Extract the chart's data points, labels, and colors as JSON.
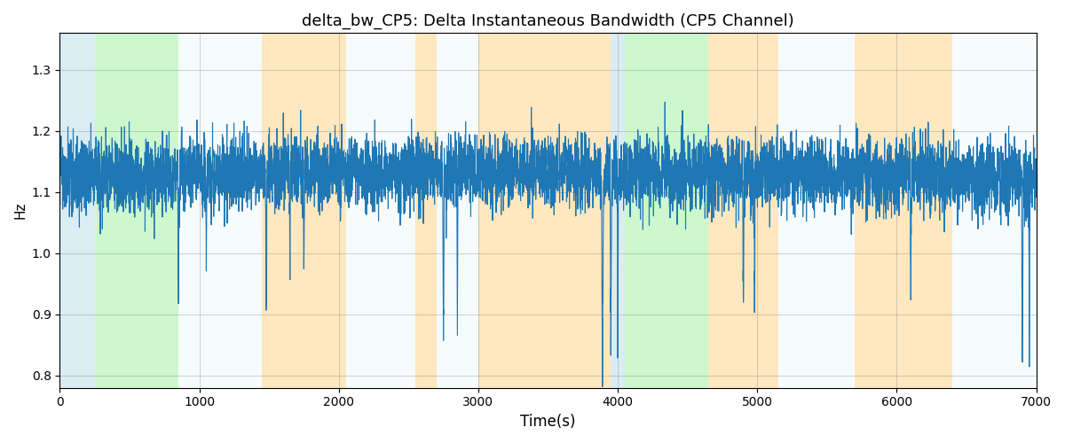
{
  "title": "delta_bw_CP5: Delta Instantaneous Bandwidth (CP5 Channel)",
  "xlabel": "Time(s)",
  "ylabel": "Hz",
  "xlim": [
    0,
    7000
  ],
  "ylim": [
    0.78,
    1.36
  ],
  "line_color": "#1f77b4",
  "line_width": 0.8,
  "background_color": "#ffffff",
  "grid": true,
  "figsize": [
    12,
    5
  ],
  "dpi": 100,
  "colored_regions": [
    {
      "xmin": 0,
      "xmax": 250,
      "color": "#add8e6",
      "alpha": 0.45
    },
    {
      "xmin": 250,
      "xmax": 850,
      "color": "#90ee90",
      "alpha": 0.45
    },
    {
      "xmin": 850,
      "xmax": 1450,
      "color": "#add8e6",
      "alpha": 0.1
    },
    {
      "xmin": 1450,
      "xmax": 2050,
      "color": "#ffa500",
      "alpha": 0.25
    },
    {
      "xmin": 2050,
      "xmax": 2550,
      "color": "#add8e6",
      "alpha": 0.1
    },
    {
      "xmin": 2550,
      "xmax": 2700,
      "color": "#ffa500",
      "alpha": 0.25
    },
    {
      "xmin": 2700,
      "xmax": 3000,
      "color": "#add8e6",
      "alpha": 0.1
    },
    {
      "xmin": 3000,
      "xmax": 3950,
      "color": "#ffa500",
      "alpha": 0.25
    },
    {
      "xmin": 3950,
      "xmax": 4050,
      "color": "#add8e6",
      "alpha": 0.45
    },
    {
      "xmin": 4050,
      "xmax": 4650,
      "color": "#90ee90",
      "alpha": 0.45
    },
    {
      "xmin": 4650,
      "xmax": 5150,
      "color": "#ffa500",
      "alpha": 0.25
    },
    {
      "xmin": 5150,
      "xmax": 5700,
      "color": "#add8e6",
      "alpha": 0.1
    },
    {
      "xmin": 5700,
      "xmax": 6400,
      "color": "#ffa500",
      "alpha": 0.25
    },
    {
      "xmin": 6400,
      "xmax": 7000,
      "color": "#add8e6",
      "alpha": 0.1
    }
  ],
  "n_points": 7000,
  "seed": 42
}
